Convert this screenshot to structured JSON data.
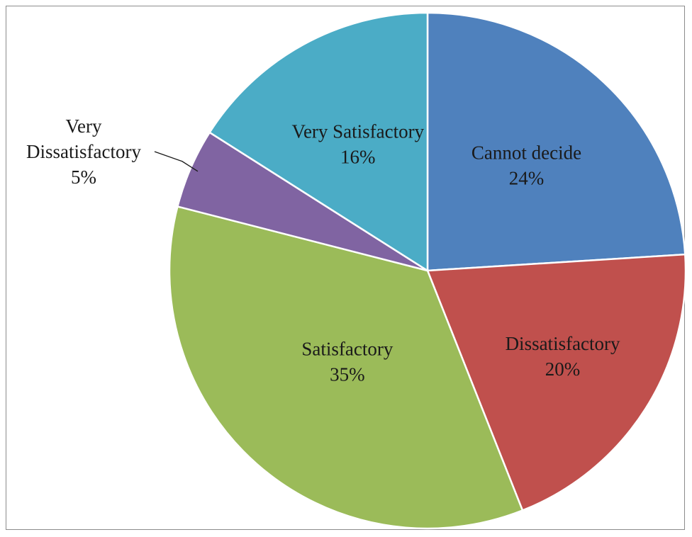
{
  "chart_data": {
    "type": "pie",
    "slices": [
      {
        "label": "Cannot decide",
        "value": 24,
        "value_label": "24%",
        "color": "#4f81bd"
      },
      {
        "label": "Dissatisfactory",
        "value": 20,
        "value_label": "20%",
        "color": "#c0504d"
      },
      {
        "label": "Satisfactory",
        "value": 35,
        "value_label": "35%",
        "color": "#9bbb59"
      },
      {
        "label": "Very Dissatisfactory",
        "value": 5,
        "value_label": "5%",
        "color": "#8064a2",
        "label_lines": [
          "Very",
          "Dissatisfactory"
        ]
      },
      {
        "label": "Very Satisfactory",
        "value": 16,
        "value_label": "16%",
        "color": "#4bacc6"
      }
    ],
    "legend": "none",
    "start": "top-clockwise"
  }
}
